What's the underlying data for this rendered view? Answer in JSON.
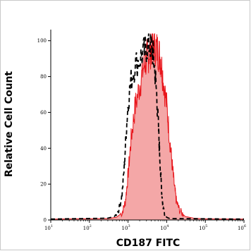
{
  "chart_data": {
    "type": "area",
    "title": "",
    "xlabel": "CD187 FITC",
    "ylabel": "Relative Cell Count",
    "x_scale": "log",
    "xlim": [
      10,
      1000000
    ],
    "ylim": [
      0,
      105
    ],
    "grid": false,
    "legend": "none",
    "x_ticks": [
      {
        "value": 10,
        "base": "10",
        "exp": "1"
      },
      {
        "value": 100,
        "base": "10",
        "exp": "2"
      },
      {
        "value": 1000,
        "base": "10",
        "exp": "3"
      },
      {
        "value": 10000,
        "base": "10",
        "exp": "4"
      },
      {
        "value": 100000,
        "base": "10",
        "exp": "5"
      },
      {
        "value": 1000000,
        "base": "10",
        "exp": "6"
      }
    ],
    "y_ticks": [
      {
        "value": 0,
        "label": "0"
      },
      {
        "value": 20,
        "label": "20"
      },
      {
        "value": 40,
        "label": "40"
      },
      {
        "value": 60,
        "label": "60"
      },
      {
        "value": 80,
        "label": "80"
      },
      {
        "value": 100,
        "label": "100"
      }
    ],
    "series": [
      {
        "style": "filled",
        "color": "#f4a7a7",
        "stroke": "#e8151b",
        "x": [
          10,
          300,
          500,
          700,
          850,
          1000,
          1200,
          1500,
          2000,
          2500,
          3000,
          3500,
          4000,
          5000,
          6000,
          7000,
          8000,
          10000,
          12000,
          14000,
          16000,
          18000,
          22000,
          30000,
          50000,
          100000,
          1000000
        ],
        "y": [
          0.5,
          0.8,
          1.5,
          4,
          10,
          25,
          45,
          62,
          75,
          85,
          90,
          93,
          96,
          97,
          94,
          90,
          80,
          64,
          45,
          30,
          18,
          10,
          5,
          2,
          1,
          0.6,
          0.5
        ]
      },
      {
        "style": "dashed",
        "color": "#000000",
        "x": [
          10,
          300,
          450,
          600,
          700,
          800,
          900,
          1000,
          1200,
          1500,
          2000,
          2500,
          3000,
          3500,
          4000,
          4500,
          5000,
          5500,
          6000,
          6500,
          7000,
          7500,
          8000,
          9000,
          10000,
          12000,
          1000000
        ],
        "y": [
          0.5,
          1,
          2,
          7,
          14,
          30,
          50,
          65,
          78,
          86,
          90,
          93,
          96,
          98,
          97,
          92,
          82,
          70,
          55,
          40,
          25,
          15,
          8,
          3,
          1.5,
          0.8,
          0.5
        ]
      }
    ]
  }
}
